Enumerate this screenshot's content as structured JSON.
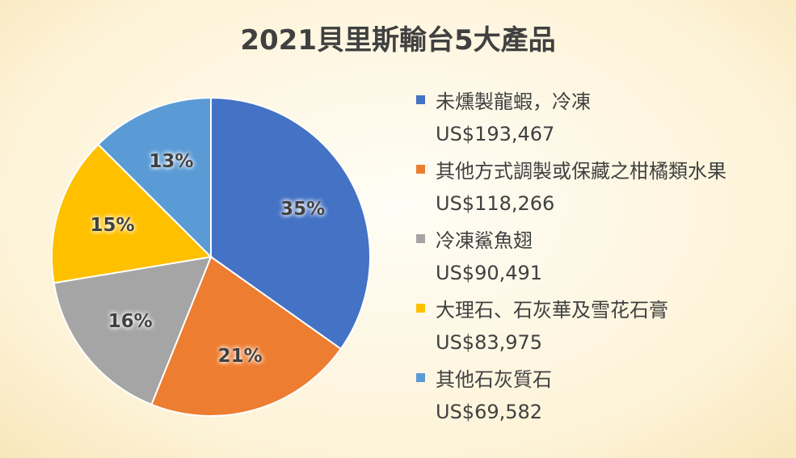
{
  "chart_data": {
    "type": "pie",
    "title": "2021貝里斯輸台5大產品",
    "categories": [
      "未燻製龍蝦，冷凍",
      "其他方式調製或保藏之柑橘類水果",
      "冷凍鯊魚翅",
      "大理石、石灰華及雪花石膏",
      "其他石灰質石"
    ],
    "values": [
      193467,
      118266,
      90491,
      83975,
      69582
    ],
    "value_labels": [
      "US$193,467",
      "US$118,266",
      "US$90,491",
      "US$83,975",
      "US$69,582"
    ],
    "percent_labels": [
      "35%",
      "21%",
      "16%",
      "15%",
      "13%"
    ],
    "colors": [
      "#4472C4",
      "#ED7D31",
      "#A5A5A5",
      "#FFC000",
      "#5B9BD5"
    ],
    "legend_position": "right"
  }
}
